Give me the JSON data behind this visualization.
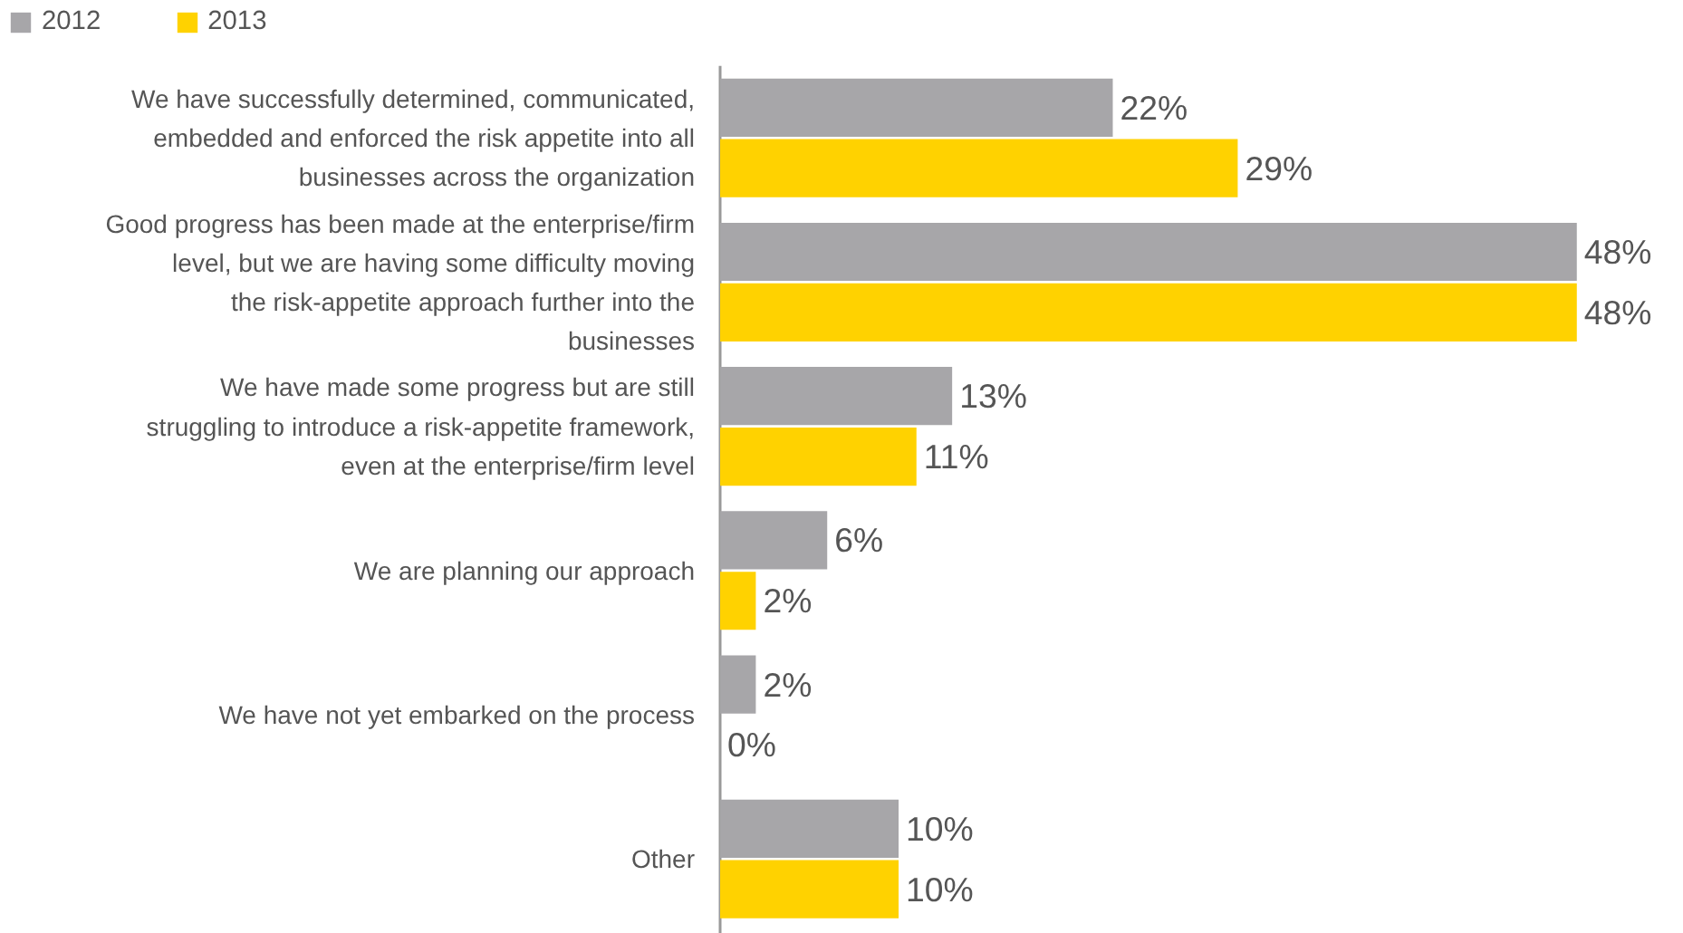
{
  "chart_data": {
    "type": "bar",
    "orientation": "horizontal",
    "categories": [
      "We have successfully determined, communicated, embedded and enforced the risk appetite into all businesses across the organization",
      "Good progress has been made at the enterprise/firm level, but we are having some difficulty moving the risk-appetite approach further into the businesses",
      "We have made some progress but are still struggling to introduce a risk-appetite framework, even at the enterprise/firm level",
      "We are planning our approach",
      "We have not yet embarked on the process",
      "Other"
    ],
    "series": [
      {
        "name": "2012",
        "color": "#a7a6a9",
        "values": [
          22,
          48,
          13,
          6,
          2,
          10
        ],
        "value_labels": [
          "22%",
          "48%",
          "13%",
          "6%",
          "2%",
          "10%"
        ]
      },
      {
        "name": "2013",
        "color": "#ffd200",
        "values": [
          29,
          48,
          11,
          2,
          0,
          10
        ],
        "value_labels": [
          "29%",
          "48%",
          "11%",
          "2%",
          "0%",
          "10%"
        ]
      }
    ],
    "xlim": [
      0,
      54
    ],
    "legend": "top left",
    "grid": false
  }
}
